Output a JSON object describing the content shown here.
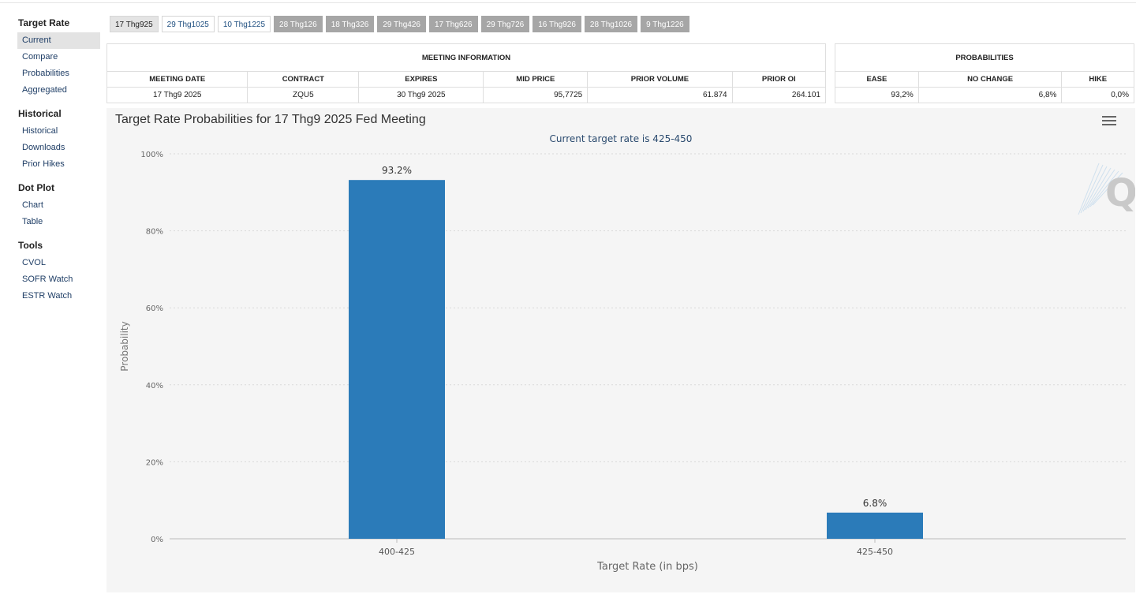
{
  "sidebar": {
    "groups": [
      {
        "title": "Target Rate",
        "items": [
          "Current",
          "Compare",
          "Probabilities",
          "Aggregated"
        ]
      },
      {
        "title": "Historical",
        "items": [
          "Historical",
          "Downloads",
          "Prior Hikes"
        ]
      },
      {
        "title": "Dot Plot",
        "items": [
          "Chart",
          "Table"
        ]
      },
      {
        "title": "Tools",
        "items": [
          "CVOL",
          "SOFR Watch",
          "ESTR Watch"
        ]
      }
    ],
    "active_item": "Current"
  },
  "tabs": [
    "17 Thg925",
    "29 Thg1025",
    "10 Thg1225",
    "28 Thg126",
    "18 Thg326",
    "29 Thg426",
    "17 Thg626",
    "29 Thg726",
    "16 Thg926",
    "28 Thg1026",
    "9 Thg1226"
  ],
  "meeting": {
    "caption": "MEETING INFORMATION",
    "headers": [
      "MEETING DATE",
      "CONTRACT",
      "EXPIRES",
      "MID PRICE",
      "PRIOR VOLUME",
      "PRIOR OI"
    ],
    "row": [
      "17 Thg9 2025",
      "ZQU5",
      "30 Thg9 2025",
      "95,7725",
      "61.874",
      "264.101"
    ]
  },
  "probabilities": {
    "caption": "PROBABILITIES",
    "headers": [
      "EASE",
      "NO CHANGE",
      "HIKE"
    ],
    "row": [
      "93,2%",
      "6,8%",
      "0,0%"
    ]
  },
  "chart_title": "Target Rate Probabilities for 17 Thg9 2025 Fed Meeting",
  "chart_data": {
    "type": "bar",
    "title": "",
    "subtitle": "Current target rate is 425-450",
    "categories": [
      "400-425",
      "425-450"
    ],
    "values": [
      93.2,
      6.8
    ],
    "data_labels": [
      "93.2%",
      "6.8%"
    ],
    "xlabel": "Target Rate (in bps)",
    "ylabel": "Probability",
    "ylim": [
      0,
      100
    ],
    "yticks": [
      "0%",
      "20%",
      "40%",
      "60%",
      "80%",
      "100%"
    ],
    "grid": true,
    "bar_color": "#2b7bb9"
  },
  "watermark": "Q"
}
